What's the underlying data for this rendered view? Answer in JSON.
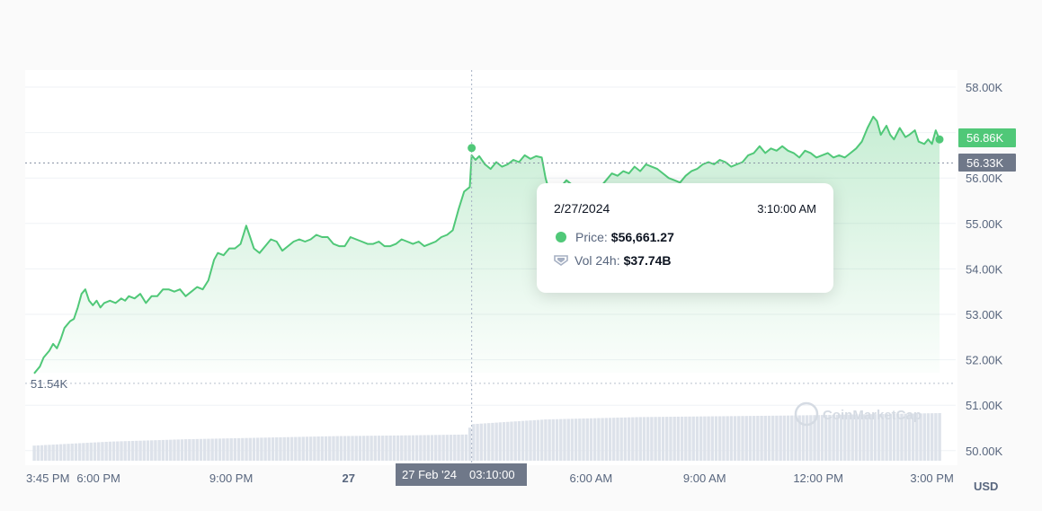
{
  "chart_data": {
    "type": "area",
    "price_series": {
      "name": "Price",
      "color": "#50c878",
      "points": [
        [
          0,
          51.7
        ],
        [
          3,
          51.85
        ],
        [
          5,
          52.05
        ],
        [
          8,
          52.2
        ],
        [
          10,
          52.35
        ],
        [
          12,
          52.25
        ],
        [
          14,
          52.45
        ],
        [
          16,
          52.7
        ],
        [
          19,
          52.85
        ],
        [
          21,
          52.9
        ],
        [
          23,
          53.15
        ],
        [
          25,
          53.45
        ],
        [
          27,
          53.55
        ],
        [
          29,
          53.3
        ],
        [
          31,
          53.2
        ],
        [
          33,
          53.3
        ],
        [
          35,
          53.15
        ],
        [
          37,
          53.25
        ],
        [
          40,
          53.3
        ],
        [
          43,
          53.25
        ],
        [
          46,
          53.35
        ],
        [
          48,
          53.3
        ],
        [
          50,
          53.4
        ],
        [
          53,
          53.35
        ],
        [
          56,
          53.45
        ],
        [
          59,
          53.25
        ],
        [
          62,
          53.4
        ],
        [
          65,
          53.4
        ],
        [
          68,
          53.55
        ],
        [
          71,
          53.55
        ],
        [
          74,
          53.5
        ],
        [
          77,
          53.55
        ],
        [
          80,
          53.4
        ],
        [
          83,
          53.5
        ],
        [
          86,
          53.6
        ],
        [
          89,
          53.55
        ],
        [
          92,
          53.75
        ],
        [
          95,
          54.2
        ],
        [
          97,
          54.35
        ],
        [
          100,
          54.3
        ],
        [
          103,
          54.45
        ],
        [
          106,
          54.45
        ],
        [
          109,
          54.55
        ],
        [
          112,
          54.95
        ],
        [
          114,
          54.7
        ],
        [
          116,
          54.45
        ],
        [
          119,
          54.35
        ],
        [
          122,
          54.5
        ],
        [
          125,
          54.65
        ],
        [
          128,
          54.6
        ],
        [
          131,
          54.4
        ],
        [
          134,
          54.5
        ],
        [
          137,
          54.6
        ],
        [
          140,
          54.65
        ],
        [
          143,
          54.6
        ],
        [
          146,
          54.65
        ],
        [
          149,
          54.75
        ],
        [
          152,
          54.7
        ],
        [
          155,
          54.7
        ],
        [
          158,
          54.55
        ],
        [
          161,
          54.5
        ],
        [
          164,
          54.5
        ],
        [
          167,
          54.7
        ],
        [
          170,
          54.65
        ],
        [
          173,
          54.6
        ],
        [
          176,
          54.55
        ],
        [
          179,
          54.55
        ],
        [
          182,
          54.6
        ],
        [
          185,
          54.5
        ],
        [
          188,
          54.5
        ],
        [
          191,
          54.55
        ],
        [
          194,
          54.65
        ],
        [
          197,
          54.6
        ],
        [
          200,
          54.55
        ],
        [
          203,
          54.6
        ],
        [
          206,
          54.5
        ],
        [
          209,
          54.55
        ],
        [
          212,
          54.6
        ],
        [
          215,
          54.7
        ],
        [
          218,
          54.75
        ],
        [
          221,
          54.85
        ],
        [
          224,
          55.3
        ],
        [
          227,
          55.7
        ],
        [
          230,
          55.8
        ],
        [
          231,
          56.5
        ],
        [
          233,
          56.4
        ],
        [
          235,
          56.48
        ],
        [
          238,
          56.3
        ],
        [
          241,
          56.2
        ],
        [
          244,
          56.35
        ],
        [
          247,
          56.25
        ],
        [
          250,
          56.3
        ],
        [
          253,
          56.4
        ],
        [
          256,
          56.35
        ],
        [
          259,
          56.5
        ],
        [
          262,
          56.42
        ],
        [
          265,
          56.48
        ],
        [
          268,
          56.45
        ],
        [
          270,
          56.0
        ],
        [
          272,
          55.7
        ],
        [
          275,
          55.85
        ],
        [
          278,
          55.8
        ],
        [
          281,
          55.95
        ],
        [
          284,
          55.85
        ],
        [
          287,
          55.8
        ],
        [
          290,
          55.7
        ],
        [
          293,
          55.8
        ],
        [
          296,
          55.75
        ],
        [
          299,
          55.8
        ],
        [
          302,
          55.95
        ],
        [
          305,
          56.1
        ],
        [
          308,
          56.05
        ],
        [
          311,
          56.15
        ],
        [
          314,
          56.1
        ],
        [
          317,
          56.25
        ],
        [
          320,
          56.15
        ],
        [
          323,
          56.3
        ],
        [
          326,
          56.25
        ],
        [
          329,
          56.2
        ],
        [
          332,
          56.1
        ],
        [
          335,
          56.0
        ],
        [
          338,
          55.95
        ],
        [
          341,
          55.9
        ],
        [
          344,
          56.05
        ],
        [
          347,
          56.15
        ],
        [
          350,
          56.2
        ],
        [
          353,
          56.3
        ],
        [
          356,
          56.35
        ],
        [
          359,
          56.3
        ],
        [
          362,
          56.4
        ],
        [
          365,
          56.35
        ],
        [
          368,
          56.25
        ],
        [
          371,
          56.3
        ],
        [
          374,
          56.35
        ],
        [
          377,
          56.5
        ],
        [
          380,
          56.55
        ],
        [
          383,
          56.7
        ],
        [
          386,
          56.55
        ],
        [
          389,
          56.65
        ],
        [
          392,
          56.6
        ],
        [
          395,
          56.7
        ],
        [
          398,
          56.6
        ],
        [
          401,
          56.55
        ],
        [
          404,
          56.45
        ],
        [
          407,
          56.6
        ],
        [
          410,
          56.55
        ],
        [
          413,
          56.45
        ],
        [
          416,
          56.5
        ],
        [
          419,
          56.55
        ],
        [
          422,
          56.45
        ],
        [
          425,
          56.5
        ],
        [
          428,
          56.45
        ],
        [
          431,
          56.55
        ],
        [
          434,
          56.65
        ],
        [
          437,
          56.8
        ],
        [
          440,
          57.1
        ],
        [
          443,
          57.35
        ],
        [
          445,
          57.25
        ],
        [
          447,
          56.95
        ],
        [
          450,
          57.15
        ],
        [
          452,
          56.95
        ],
        [
          454,
          56.85
        ],
        [
          457,
          57.1
        ],
        [
          460,
          56.9
        ],
        [
          462,
          56.95
        ],
        [
          465,
          57.05
        ],
        [
          467,
          56.8
        ],
        [
          470,
          56.75
        ],
        [
          472,
          56.85
        ],
        [
          474,
          56.75
        ],
        [
          476,
          57.05
        ],
        [
          478,
          56.85
        ]
      ],
      "price_line": 56.33,
      "marker_x": 231,
      "marker_y": 56.66
    },
    "volume_series": {
      "name": "Vol 24h",
      "points": [
        [
          0,
          35.0
        ],
        [
          40,
          35.5
        ],
        [
          80,
          35.8
        ],
        [
          120,
          36.0
        ],
        [
          160,
          36.2
        ],
        [
          200,
          36.3
        ],
        [
          228,
          36.4
        ],
        [
          231,
          37.7
        ],
        [
          270,
          38.3
        ],
        [
          320,
          38.6
        ],
        [
          400,
          38.8
        ],
        [
          478,
          39.1
        ]
      ]
    },
    "x_ticks": [
      "3:45 PM",
      "6:00 PM",
      "9:00 PM",
      "27",
      "6:00 AM",
      "9:00 AM",
      "12:00 PM",
      "3:00 PM"
    ],
    "x_tick_positions": [
      0,
      34,
      104,
      166,
      294,
      354,
      414,
      474
    ],
    "x_tick_bold": [
      false,
      false,
      false,
      true,
      false,
      false,
      false,
      false
    ],
    "y_ticks": [
      "58.00K",
      "57.00K",
      "56.00K",
      "55.00K",
      "54.00K",
      "53.00K",
      "52.00K",
      "51.00K",
      "50.00K"
    ],
    "y_values": [
      58,
      57,
      56,
      55,
      54,
      53,
      52,
      51,
      50
    ],
    "ylim": [
      50,
      58.2
    ],
    "currency": "USD",
    "low_label": "51.54K",
    "current_label": "56.86K",
    "ref_label": "56.33K",
    "crosshair_date": "27 Feb '24",
    "crosshair_time": "03:10:00",
    "watermark": "CoinMarketCap",
    "colors": {
      "up": "#50c878",
      "ref": "#6f7889",
      "grid": "#eff2f5"
    }
  },
  "tooltip": {
    "date": "2/27/2024",
    "time": "3:10:00 AM",
    "price_key": "Price:",
    "price_value": "$56,661.27",
    "vol_key": "Vol 24h:",
    "vol_value": "$37.74B"
  }
}
